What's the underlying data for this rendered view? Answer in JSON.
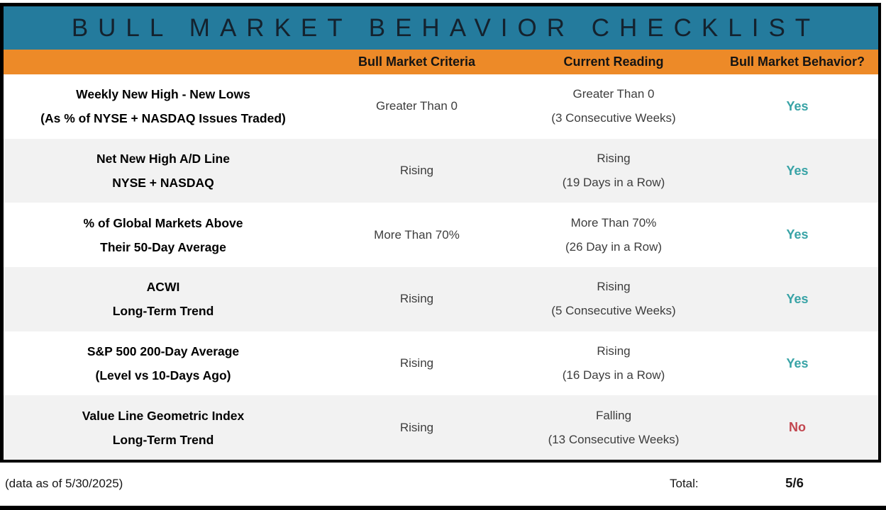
{
  "title": "BULL MARKET BEHAVIOR CHECKLIST",
  "colors": {
    "teal": "#247B9D",
    "orange": "#ED8A28",
    "yes": "#38A3A6",
    "no": "#C2464F",
    "title_text": "#14222E",
    "body_text": "#3D3D3D",
    "row_alt": "#F2F2F2"
  },
  "chart_data": {
    "type": "table",
    "title": "BULL MARKET BEHAVIOR CHECKLIST",
    "columns": [
      "",
      "Bull Market Criteria",
      "Current Reading",
      "Bull Market Behavior?"
    ],
    "rows": [
      {
        "indicator": [
          "Weekly New High - New Lows",
          "(As % of NYSE + NASDAQ Issues Traded)"
        ],
        "criteria": "Greater Than 0",
        "current_reading": [
          "Greater Than 0",
          "(3 Consecutive Weeks)"
        ],
        "bull_market_behavior": "Yes"
      },
      {
        "indicator": [
          "Net New High A/D Line",
          "NYSE + NASDAQ"
        ],
        "criteria": "Rising",
        "current_reading": [
          "Rising",
          "(19 Days in a Row)"
        ],
        "bull_market_behavior": "Yes"
      },
      {
        "indicator": [
          "% of Global Markets Above",
          "Their 50-Day Average"
        ],
        "criteria": "More Than 70%",
        "current_reading": [
          "More Than 70%",
          "(26 Day in a Row)"
        ],
        "bull_market_behavior": "Yes"
      },
      {
        "indicator": [
          "ACWI",
          "Long-Term Trend"
        ],
        "criteria": "Rising",
        "current_reading": [
          "Rising",
          "(5 Consecutive Weeks)"
        ],
        "bull_market_behavior": "Yes"
      },
      {
        "indicator": [
          "S&P 500 200-Day Average",
          "(Level vs 10-Days Ago)"
        ],
        "criteria": "Rising",
        "current_reading": [
          "Rising",
          "(16 Days in a Row)"
        ],
        "bull_market_behavior": "Yes"
      },
      {
        "indicator": [
          "Value Line Geometric Index",
          "Long-Term Trend"
        ],
        "criteria": "Rising",
        "current_reading": [
          "Falling",
          "(13 Consecutive Weeks)"
        ],
        "bull_market_behavior": "No"
      }
    ]
  },
  "footer": {
    "note": "(data as of 5/30/2025)",
    "total_label": "Total:",
    "total_value": "5/6"
  }
}
